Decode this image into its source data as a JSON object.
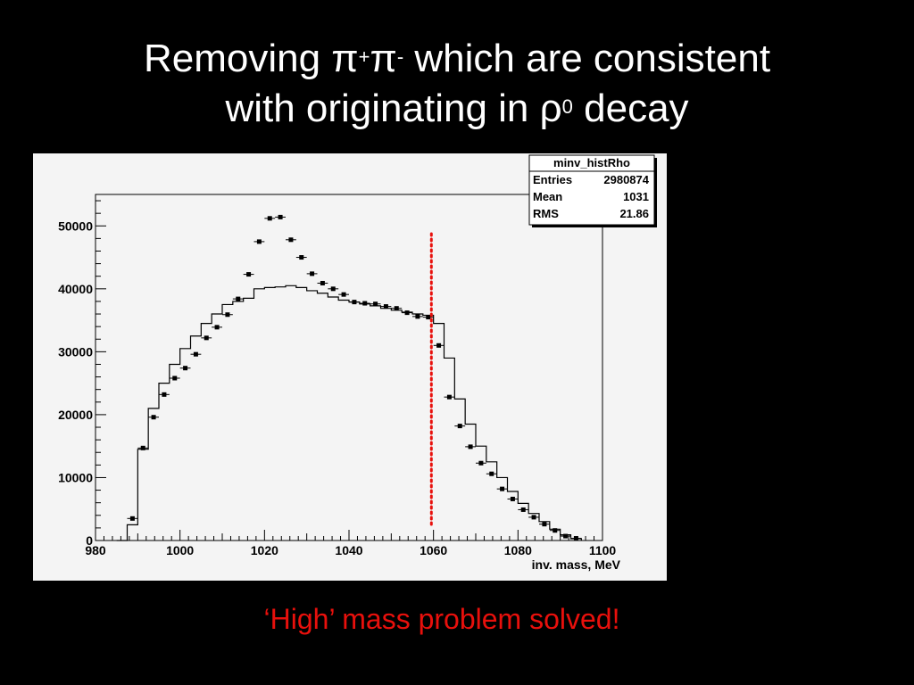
{
  "slide": {
    "title_line1_start": "Removing π",
    "title_sup1": "+",
    "title_mid": "π",
    "title_sup2": "-",
    "title_line1_end": " which are consistent",
    "title_line2_start": "with originating in ρ",
    "title_sup3": "0",
    "title_line2_end": " decay",
    "caption": "‘High’ mass problem solved!"
  },
  "stats_box": {
    "name": "minv_histRho",
    "rows": [
      {
        "label": "Entries",
        "value": "2980874"
      },
      {
        "label": "Mean",
        "value": "1031"
      },
      {
        "label": "RMS",
        "value": "21.86"
      }
    ]
  },
  "colors": {
    "background": "#000000",
    "plot_background": "#f4f4f4",
    "cut_line": "#e8100c",
    "caption": "#e8100c"
  },
  "chart_data": {
    "type": "histogram",
    "title": "",
    "xlabel": "inv. mass, MeV",
    "ylabel": "",
    "xlim": [
      980,
      1100
    ],
    "ylim": [
      0,
      55000
    ],
    "x_ticks": [
      980,
      1000,
      1020,
      1040,
      1060,
      1080,
      1100
    ],
    "y_ticks": [
      0,
      10000,
      20000,
      30000,
      40000,
      50000
    ],
    "x_tick_labels": [
      "980",
      "1000",
      "1020",
      "1040",
      "1060",
      "1080",
      "1100"
    ],
    "y_tick_labels": [
      "0",
      "10000",
      "20000",
      "30000",
      "40000",
      "50000"
    ],
    "bin_width": 2.5,
    "bin_centers": [
      986.25,
      988.75,
      991.25,
      993.75,
      996.25,
      998.75,
      1001.25,
      1003.75,
      1006.25,
      1008.75,
      1011.25,
      1013.75,
      1016.25,
      1018.75,
      1021.25,
      1023.75,
      1026.25,
      1028.75,
      1031.25,
      1033.75,
      1036.25,
      1038.75,
      1041.25,
      1043.75,
      1046.25,
      1048.75,
      1051.25,
      1053.75,
      1056.25,
      1058.75,
      1061.25,
      1063.75,
      1066.25,
      1068.75,
      1071.25,
      1073.75,
      1076.25,
      1078.75,
      1081.25,
      1083.75,
      1086.25,
      1088.75,
      1091.25,
      1093.75
    ],
    "series": [
      {
        "style": "step",
        "values": [
          0,
          2500,
          14500,
          21000,
          25000,
          28000,
          30500,
          32500,
          34500,
          36000,
          37500,
          38000,
          38500,
          40000,
          40200,
          40300,
          40500,
          40200,
          39700,
          39300,
          38700,
          38200,
          37900,
          37600,
          37300,
          36900,
          36600,
          36300,
          36000,
          35800,
          34500,
          29000,
          22500,
          18500,
          15000,
          12500,
          10000,
          7800,
          5900,
          4300,
          3000,
          1800,
          900,
          300
        ]
      },
      {
        "style": "points",
        "values": [
          0,
          3500,
          14700,
          19600,
          23200,
          25800,
          27400,
          29600,
          32200,
          33900,
          35900,
          38400,
          42300,
          47500,
          51200,
          51400,
          47800,
          45000,
          42400,
          40900,
          40000,
          39100,
          37900,
          37700,
          37600,
          37200,
          36900,
          36200,
          35600,
          35500,
          31000,
          22800,
          18200,
          14900,
          12300,
          10600,
          8200,
          6600,
          4900,
          3700,
          2600,
          1600,
          700,
          350
        ]
      }
    ],
    "annotation": {
      "type": "vertical_dotted_line",
      "x": 1059.5
    }
  }
}
